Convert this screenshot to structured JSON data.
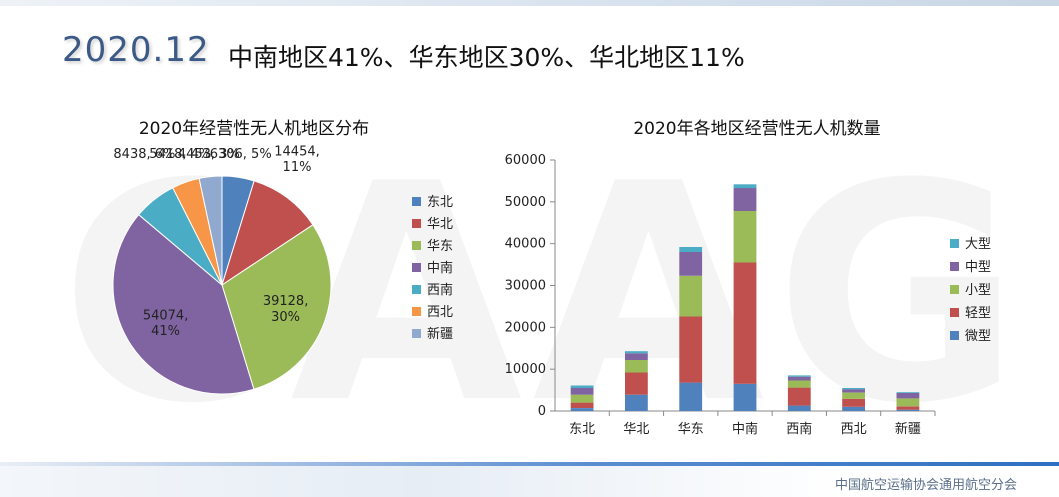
{
  "header": {
    "year": "2020.12",
    "headline": "中南地区41%、华东地区30%、华北地区11%"
  },
  "watermark": "CAAG",
  "footer": {
    "org": "中国航空运输协会通用航空分会"
  },
  "colors": {
    "微型": "#4f81bd",
    "轻型": "#c0504d",
    "小型": "#9bbb59",
    "中型": "#8064a2",
    "大型": "#4bacc6",
    "东北": "#4f81bd",
    "华北": "#c0504d",
    "华东": "#9bbb59",
    "中南": "#8064a2",
    "西南": "#4bacc6",
    "西北": "#f79646",
    "新疆": "#92a9cf"
  },
  "chart_data": [
    {
      "type": "pie",
      "title": "2020年经营性无人机地区分布",
      "labels": [
        "东北",
        "华北",
        "华东",
        "中南",
        "西南",
        "西北",
        "新疆"
      ],
      "values": [
        6306,
        14454,
        39128,
        54074,
        8438,
        5418,
        4453
      ],
      "data_labels": [
        "6306, 5%",
        "14454, 11%",
        "39128, 30%",
        "54074, 41%",
        "8438, 6%",
        "5418, 4%",
        "4453, 3%"
      ],
      "legend": "right"
    },
    {
      "type": "bar",
      "stacked": true,
      "title": "2020年各地区经营性无人机数量",
      "categories": [
        "东北",
        "华北",
        "华东",
        "中南",
        "西南",
        "西北",
        "新疆"
      ],
      "series": [
        {
          "name": "微型",
          "values": [
            700,
            3900,
            6800,
            6500,
            1300,
            1000,
            300
          ]
        },
        {
          "name": "轻型",
          "values": [
            1300,
            5300,
            15800,
            29000,
            4300,
            1900,
            800
          ]
        },
        {
          "name": "小型",
          "values": [
            1900,
            3000,
            9700,
            12300,
            1700,
            1500,
            1900
          ]
        },
        {
          "name": "中型",
          "values": [
            1600,
            1600,
            5700,
            5500,
            900,
            800,
            1300
          ]
        },
        {
          "name": "大型",
          "values": [
            600,
            500,
            1200,
            900,
            300,
            300,
            200
          ]
        }
      ],
      "ylim": [
        0,
        60000
      ],
      "yticks": [
        "0",
        "10000",
        "20000",
        "30000",
        "40000",
        "50000",
        "60000"
      ],
      "grid": false,
      "legend": "right"
    }
  ]
}
